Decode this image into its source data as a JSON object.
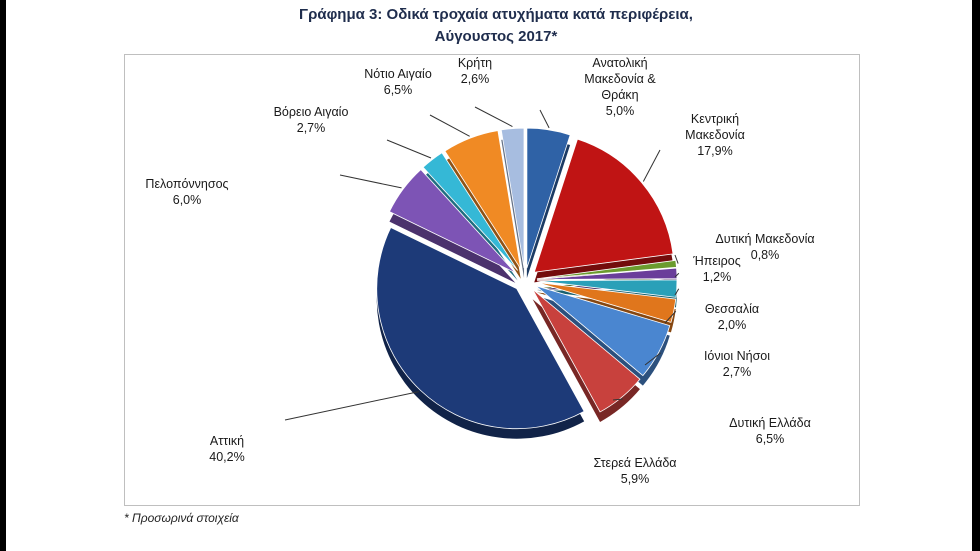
{
  "page": {
    "title_line1": "Γράφημα 3: Οδικά τροχαία ατυχήματα κατά περιφέρεια,",
    "title_line2": "Αύγουστος 2017*",
    "footnote": "* Προσωρινά στοιχεία"
  },
  "chart_data": {
    "type": "pie",
    "style": "3d-exploded",
    "start_position": "top, clockwise",
    "slices": [
      {
        "label": "Ανατολική Μακεδονία & Θράκη",
        "label_lines": [
          "Ανατολική",
          "Μακεδονία &",
          "Θράκη"
        ],
        "value": 5.0,
        "value_label": "5,0%",
        "color": "#2f62a6"
      },
      {
        "label": "Κεντρική Μακεδονία",
        "label_lines": [
          "Κεντρική",
          "Μακεδονία"
        ],
        "value": 17.9,
        "value_label": "17,9%",
        "color": "#c01414"
      },
      {
        "label": "Δυτική Μακεδονία",
        "label_lines": [
          "Δυτική Μακεδονία"
        ],
        "value": 0.8,
        "value_label": "0,8%",
        "color": "#6b9b2e"
      },
      {
        "label": "Ήπειρος",
        "label_lines": [
          "Ήπειρος"
        ],
        "value": 1.2,
        "value_label": "1,2%",
        "color": "#6a3d9a"
      },
      {
        "label": "Θεσσαλία",
        "label_lines": [
          "Θεσσαλία"
        ],
        "value": 2.0,
        "value_label": "2,0%",
        "color": "#2aa0b8"
      },
      {
        "label": "Ιόνιοι Νήσοι",
        "label_lines": [
          "Ιόνιοι Νήσοι"
        ],
        "value": 2.7,
        "value_label": "2,7%",
        "color": "#e0761c"
      },
      {
        "label": "Δυτική Ελλάδα",
        "label_lines": [
          "Δυτική Ελλάδα"
        ],
        "value": 6.5,
        "value_label": "6,5%",
        "color": "#4a86d0"
      },
      {
        "label": "Στερεά Ελλάδα",
        "label_lines": [
          "Στερεά Ελλάδα"
        ],
        "value": 5.9,
        "value_label": "5,9%",
        "color": "#c8413d"
      },
      {
        "label": "Αττική",
        "label_lines": [
          "Αττική"
        ],
        "value": 40.2,
        "value_label": "40,2%",
        "color": "#1d3a78"
      },
      {
        "label": "Πελοπόννησος",
        "label_lines": [
          "Πελοπόννησος"
        ],
        "value": 6.0,
        "value_label": "6,0%",
        "color": "#7d54b5"
      },
      {
        "label": "Βόρειο Αιγαίο",
        "label_lines": [
          "Βόρειο Αιγαίο"
        ],
        "value": 2.7,
        "value_label": "2,7%",
        "color": "#35b8d6"
      },
      {
        "label": "Νότιο Αιγαίο",
        "label_lines": [
          "Νότιο Αιγαίο"
        ],
        "value": 6.5,
        "value_label": "6,5%",
        "color": "#f08a24"
      },
      {
        "label": "Κρήτη",
        "label_lines": [
          "Κρήτη"
        ],
        "value": 2.6,
        "value_label": "2,6%",
        "color": "#a7bde0"
      }
    ]
  }
}
